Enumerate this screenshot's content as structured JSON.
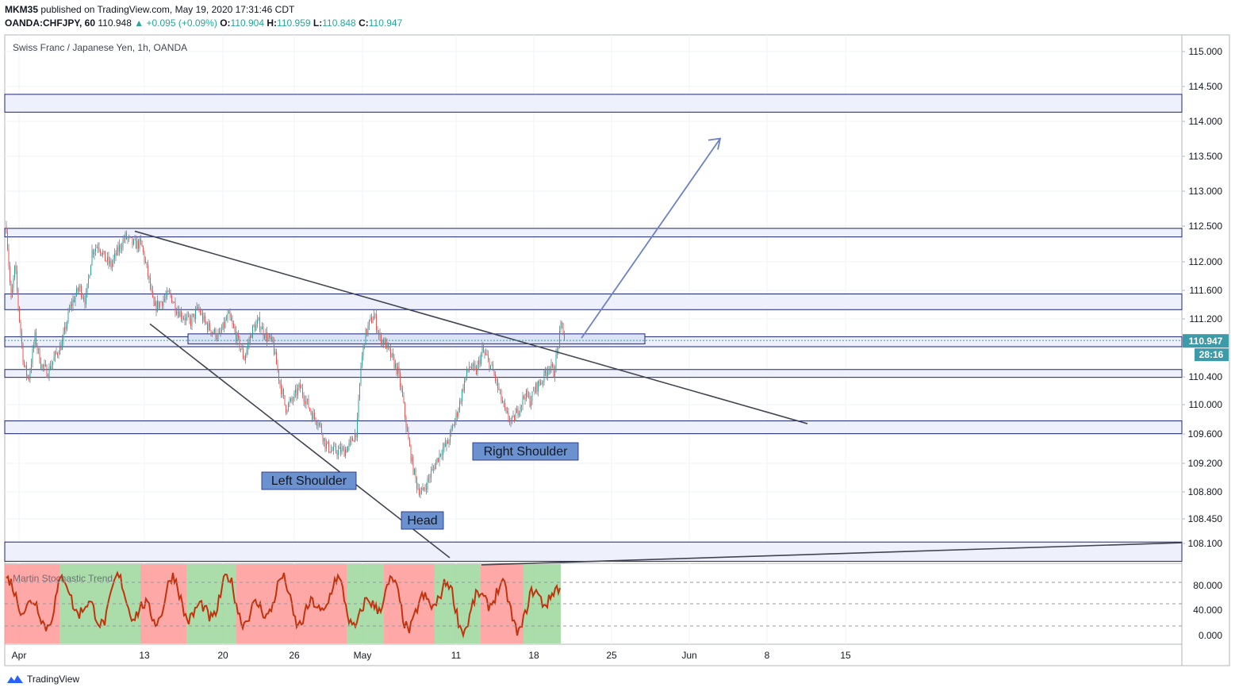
{
  "header": {
    "author": "MKM35",
    "published": "published on TradingView.com, May 19, 2020 17:31:46 CDT",
    "symbol": "OANDA:CHFJPY, 60",
    "last": "110.948",
    "change_arrow": "▲",
    "change": "+0.095 (+0.09%)",
    "o_label": "O:",
    "o": "110.904",
    "h_label": "H:",
    "h": "110.959",
    "l_label": "L:",
    "l": "110.848",
    "c_label": "C:",
    "c": "110.947"
  },
  "chart_title": "Swiss Franc / Japanese Yen, 1h, OANDA",
  "indicator_title": "Martin Stochastic Trend",
  "footer": {
    "brand": "TradingView",
    "icon": "tradingview-logo-icon"
  },
  "price_badge": {
    "price": "110.947",
    "countdown": "28:16"
  },
  "annotations": {
    "left_shoulder": "Left Shoulder",
    "head": "Head",
    "right_shoulder": "Right Shoulder"
  },
  "colors": {
    "accent": "#3d9aa8",
    "zone_fill": "#eef0fb",
    "zone_border": "#1a237e",
    "label_fill": "#6b92cf",
    "arrow": "#6b82c8",
    "trendline": "#434651",
    "stoch_line": "#c2330d",
    "stoch_green": "#8ed18e",
    "stoch_red": "#ff8b8b"
  },
  "chart_data": {
    "type": "candlestick",
    "y_axis": {
      "ticks": [
        "115.000",
        "114.500",
        "114.000",
        "113.500",
        "113.000",
        "112.500",
        "112.000",
        "111.600",
        "111.200",
        "110.400",
        "110.000",
        "109.600",
        "109.200",
        "108.800",
        "108.450",
        "108.100"
      ]
    },
    "x_axis": {
      "ticks": [
        "Apr",
        "13",
        "20",
        "26",
        "May",
        "11",
        "18",
        "25",
        "Jun",
        "8",
        "15"
      ]
    },
    "indicator_axis": {
      "ticks": [
        "80.000",
        "40.000",
        "0.000"
      ]
    },
    "zones": [
      {
        "low": 114.15,
        "high": 114.4
      },
      {
        "low": 112.4,
        "high": 112.52
      },
      {
        "low": 111.38,
        "high": 111.6
      },
      {
        "low": 110.86,
        "high": 111.0
      },
      {
        "low": 110.43,
        "high": 110.54
      },
      {
        "low": 109.64,
        "high": 109.82
      },
      {
        "low": 107.85,
        "high": 108.12
      }
    ],
    "price_path": [
      [
        0,
        112.55
      ],
      [
        6,
        111.5
      ],
      [
        11,
        112.0
      ],
      [
        16,
        111.3
      ],
      [
        22,
        110.6
      ],
      [
        28,
        110.4
      ],
      [
        36,
        111.0
      ],
      [
        44,
        110.6
      ],
      [
        52,
        110.5
      ],
      [
        60,
        110.7
      ],
      [
        70,
        110.9
      ],
      [
        80,
        111.4
      ],
      [
        92,
        111.7
      ],
      [
        100,
        111.5
      ],
      [
        108,
        112.2
      ],
      [
        116,
        112.3
      ],
      [
        124,
        112.1
      ],
      [
        132,
        112.0
      ],
      [
        140,
        112.2
      ],
      [
        150,
        112.4
      ],
      [
        160,
        112.3
      ],
      [
        170,
        112.3
      ],
      [
        178,
        111.9
      ],
      [
        186,
        111.4
      ],
      [
        196,
        111.5
      ],
      [
        206,
        111.6
      ],
      [
        214,
        111.4
      ],
      [
        222,
        111.3
      ],
      [
        232,
        111.2
      ],
      [
        242,
        111.4
      ],
      [
        250,
        111.2
      ],
      [
        258,
        111.1
      ],
      [
        268,
        111.0
      ],
      [
        280,
        111.3
      ],
      [
        290,
        111.0
      ],
      [
        300,
        110.7
      ],
      [
        310,
        111.1
      ],
      [
        318,
        111.2
      ],
      [
        328,
        111.0
      ],
      [
        336,
        110.9
      ],
      [
        344,
        110.4
      ],
      [
        352,
        110.0
      ],
      [
        360,
        110.1
      ],
      [
        370,
        110.3
      ],
      [
        378,
        110.1
      ],
      [
        386,
        109.9
      ],
      [
        394,
        109.8
      ],
      [
        402,
        109.5
      ],
      [
        410,
        109.4
      ],
      [
        418,
        109.4
      ],
      [
        426,
        109.4
      ],
      [
        434,
        109.5
      ],
      [
        442,
        109.7
      ],
      [
        447,
        110.6
      ],
      [
        452,
        111.0
      ],
      [
        458,
        111.2
      ],
      [
        464,
        111.3
      ],
      [
        470,
        111.0
      ],
      [
        478,
        110.9
      ],
      [
        486,
        110.7
      ],
      [
        494,
        110.5
      ],
      [
        500,
        110.1
      ],
      [
        506,
        109.6
      ],
      [
        512,
        109.2
      ],
      [
        518,
        108.9
      ],
      [
        524,
        108.8
      ],
      [
        532,
        109.0
      ],
      [
        540,
        109.2
      ],
      [
        548,
        109.4
      ],
      [
        556,
        109.5
      ],
      [
        562,
        109.7
      ],
      [
        570,
        110.0
      ],
      [
        578,
        110.4
      ],
      [
        584,
        110.6
      ],
      [
        592,
        110.5
      ],
      [
        600,
        110.8
      ],
      [
        606,
        110.7
      ],
      [
        614,
        110.5
      ],
      [
        622,
        110.2
      ],
      [
        630,
        109.9
      ],
      [
        638,
        109.8
      ],
      [
        646,
        110.0
      ],
      [
        654,
        110.2
      ],
      [
        660,
        110.1
      ],
      [
        668,
        110.3
      ],
      [
        676,
        110.4
      ],
      [
        684,
        110.6
      ],
      [
        690,
        110.5
      ],
      [
        696,
        110.9
      ],
      [
        700,
        111.2
      ],
      [
        704,
        110.95
      ]
    ],
    "shapes": {
      "upper_trendline": [
        [
          170,
          112.48
        ],
        [
          1018,
          109.78
        ]
      ],
      "lower_trendline": [
        [
          189,
          111.18
        ],
        [
          567,
          107.9
        ]
      ],
      "bottom_line": [
        [
          607,
          107.8
        ],
        [
          1490,
          108.11
        ]
      ],
      "target_arrow": [
        [
          733,
          110.98
        ],
        [
          908,
          113.78
        ]
      ]
    },
    "last_price": 110.947
  }
}
